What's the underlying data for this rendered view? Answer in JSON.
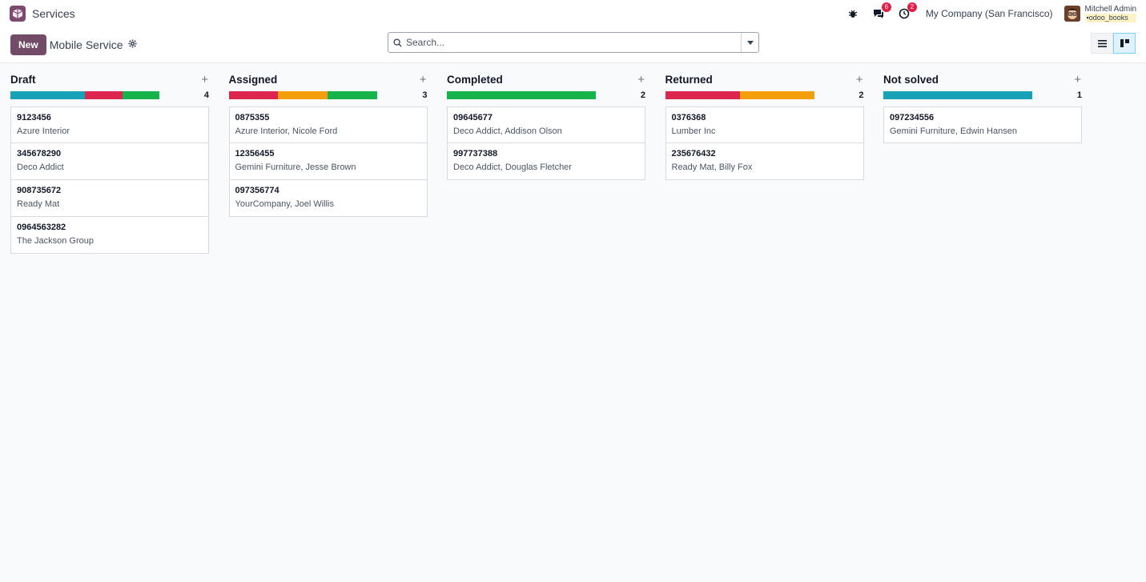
{
  "app": {
    "title": "Services"
  },
  "nav": {
    "messages_badge": "6",
    "activities_badge": "2",
    "company": "My Company (San Francisco)",
    "user_name": "Mitchell Admin",
    "user_db": "odoo_books"
  },
  "control": {
    "new_label": "New",
    "breadcrumb": "Mobile Service",
    "search_placeholder": "Search..."
  },
  "colors": {
    "blue": "#17a2b8",
    "red": "#dc3545",
    "green": "#28a745",
    "orange": "#f0a020"
  },
  "columns": [
    {
      "title": "Draft",
      "count": "4",
      "progress": [
        {
          "color": "#17a2b8",
          "share": 0.5
        },
        {
          "color": "#dc2650",
          "share": 0.25
        },
        {
          "color": "#16b34a",
          "share": 0.25
        }
      ],
      "cards": [
        {
          "ref": "9123456",
          "sub": "Azure Interior"
        },
        {
          "ref": "345678290",
          "sub": "Deco Addict"
        },
        {
          "ref": "908735672",
          "sub": "Ready Mat"
        },
        {
          "ref": "0964563282",
          "sub": "The Jackson Group"
        }
      ]
    },
    {
      "title": "Assigned",
      "count": "3",
      "progress": [
        {
          "color": "#dc2650",
          "share": 0.3333
        },
        {
          "color": "#f59e0b",
          "share": 0.3333
        },
        {
          "color": "#16b34a",
          "share": 0.3334
        }
      ],
      "cards": [
        {
          "ref": "0875355",
          "sub": "Azure Interior, Nicole Ford"
        },
        {
          "ref": "12356455",
          "sub": "Gemini Furniture, Jesse Brown"
        },
        {
          "ref": "097356774",
          "sub": "YourCompany, Joel Willis"
        }
      ]
    },
    {
      "title": "Completed",
      "count": "2",
      "progress": [
        {
          "color": "#16b34a",
          "share": 1
        }
      ],
      "cards": [
        {
          "ref": "09645677",
          "sub": "Deco Addict, Addison Olson"
        },
        {
          "ref": "997737388",
          "sub": "Deco Addict, Douglas Fletcher"
        }
      ]
    },
    {
      "title": "Returned",
      "count": "2",
      "progress": [
        {
          "color": "#dc2650",
          "share": 0.5
        },
        {
          "color": "#f59e0b",
          "share": 0.5
        }
      ],
      "cards": [
        {
          "ref": "0376368",
          "sub": "Lumber Inc"
        },
        {
          "ref": "235676432",
          "sub": "Ready Mat, Billy Fox"
        }
      ]
    },
    {
      "title": "Not solved",
      "count": "1",
      "progress": [
        {
          "color": "#17a2b8",
          "share": 1
        }
      ],
      "cards": [
        {
          "ref": "097234556",
          "sub": "Gemini Furniture, Edwin Hansen"
        }
      ]
    }
  ]
}
